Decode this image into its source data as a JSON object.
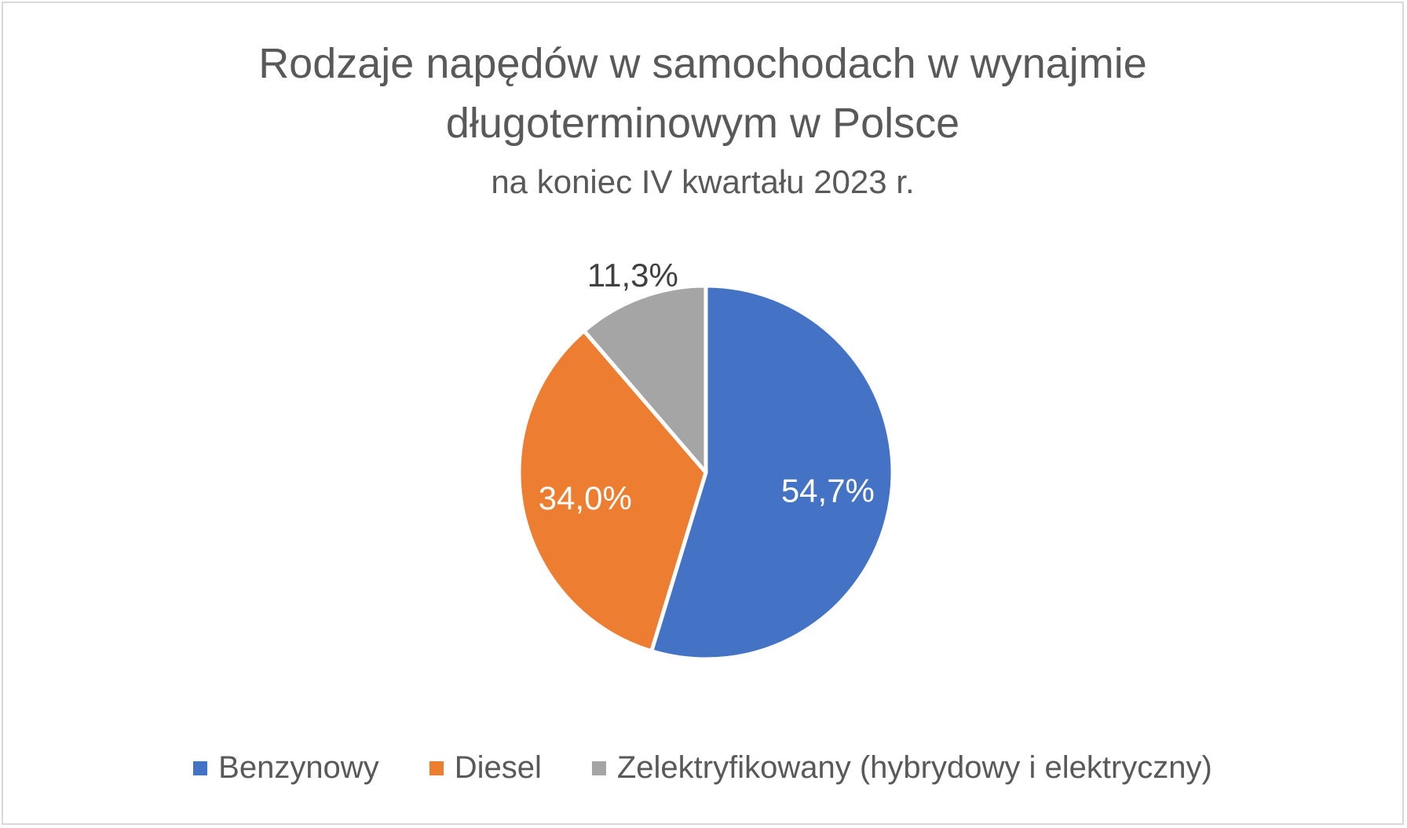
{
  "chart_data": {
    "type": "pie",
    "title": "Rodzaje napędów w samochodach w wynajmie długoterminowym w Polsce",
    "title_lines": [
      "Rodzaje napędów w samochodach w wynajmie",
      "długoterminowym w Polsce"
    ],
    "subtitle": "na koniec IV kwartału 2023 r.",
    "legend_position": "bottom",
    "slices": [
      {
        "name": "Benzynowy",
        "value": 54.7,
        "label": "54,7%",
        "color": "#4472C4",
        "label_color": "#ffffff",
        "label_side": "inside"
      },
      {
        "name": "Diesel",
        "value": 34.0,
        "label": "34,0%",
        "color": "#ED7D31",
        "label_color": "#ffffff",
        "label_side": "inside"
      },
      {
        "name": "Zelektryfikowany (hybrydowy i elektryczny)",
        "value": 11.3,
        "label": "11,3%",
        "color": "#A5A5A5",
        "label_color": "#404040",
        "label_side": "outside"
      }
    ]
  }
}
